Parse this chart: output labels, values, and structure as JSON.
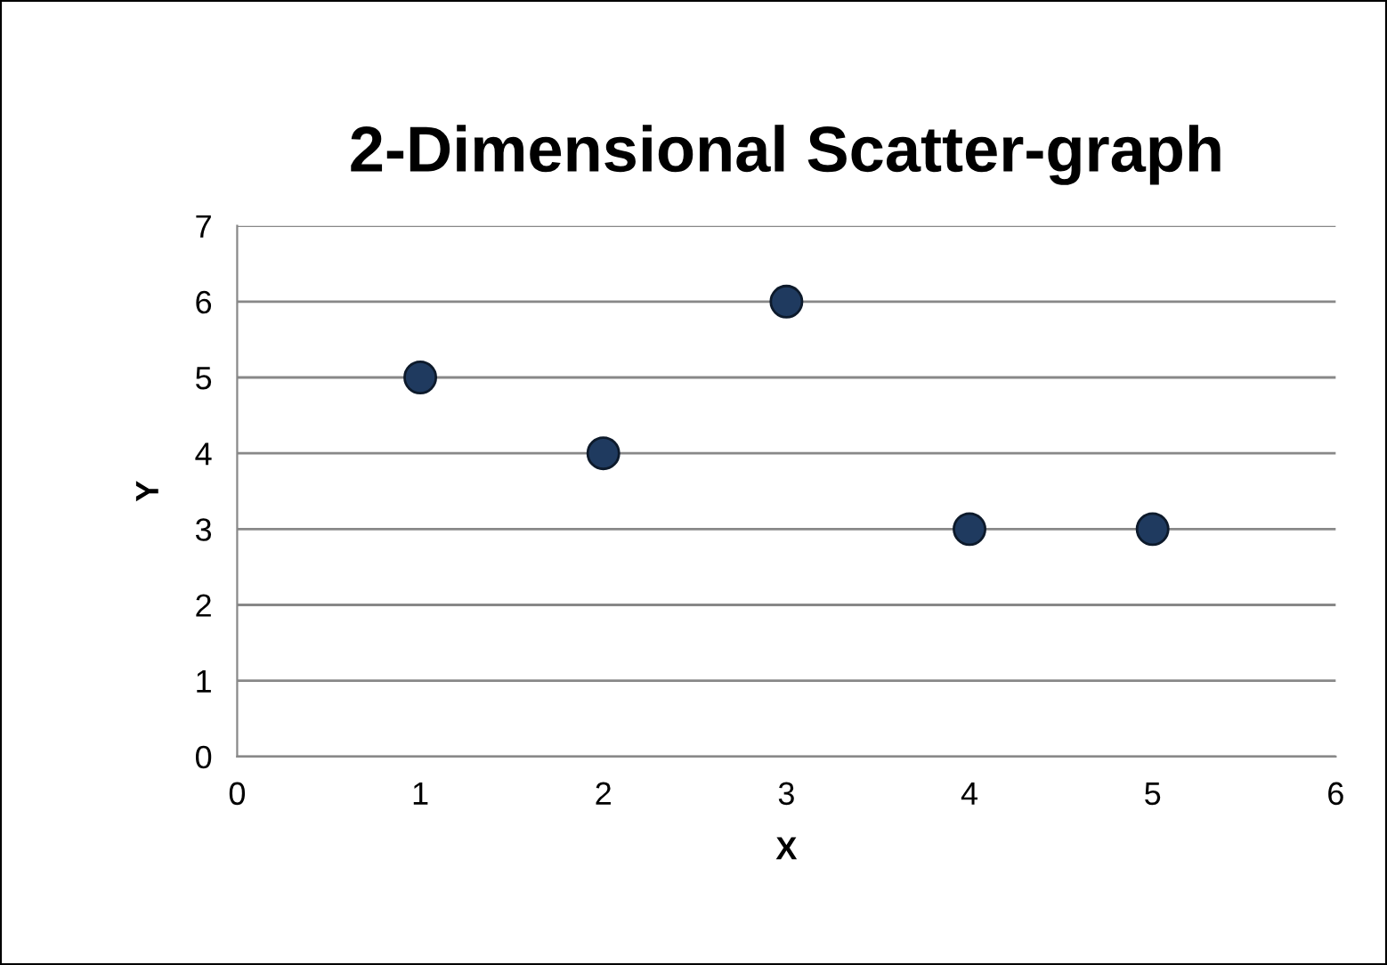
{
  "chart_data": {
    "type": "scatter",
    "title": "2-Dimensional Scatter-graph",
    "xlabel": "X",
    "ylabel": "Y",
    "x": [
      1,
      2,
      3,
      4,
      5
    ],
    "series": [
      {
        "color": "#1f3a5f",
        "values": [
          5,
          4,
          6,
          3,
          3
        ]
      }
    ],
    "xlim": [
      0,
      6
    ],
    "xticks": [
      0,
      1,
      2,
      3,
      4,
      5,
      6
    ],
    "ylim": [
      0,
      7
    ],
    "yticks": [
      0,
      1,
      2,
      3,
      4,
      5,
      6,
      7
    ],
    "grid": "y",
    "marker": "circle"
  }
}
